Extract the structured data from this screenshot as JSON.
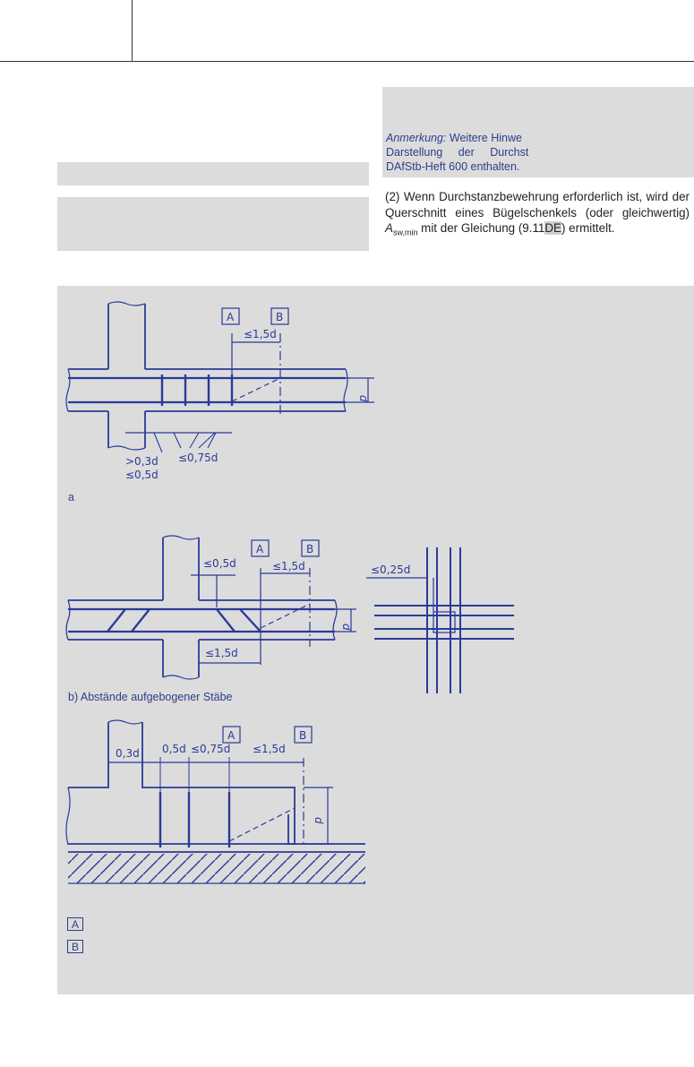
{
  "note": {
    "label": "Anmerkung:",
    "line1": "Weitere Hinwe",
    "line2": "Darstellung der Durchst",
    "line3": "DAfStb-Heft 600 enthalten."
  },
  "paragraph": {
    "text_a": "(2) Wenn Durchstanzbewehrung erforderlich ist, wird der Querschnitt eines Bügelschenkels (oder gleichwertig) ",
    "symbol": "A",
    "subscript": "sw,min",
    "text_b": " mit der Gleichung (9.11",
    "highlight": "DE",
    "text_c": ") ermittelt."
  },
  "figure": {
    "caption_a": "a",
    "caption_b": "b) Abstände aufgebogener Stäbe",
    "key_a": "A",
    "key_b": "B",
    "labels": {
      "a1": "A",
      "b1": "B",
      "d": "d",
      "le15": "≤1,5d",
      "gt03": ">0,3d",
      "le05": "≤0,5d",
      "le075": "≤0,75d",
      "le025": "≤0,25d",
      "d03": "0,3d",
      "d05": "0,5d"
    }
  },
  "colors": {
    "panel": "#dcdcdc",
    "ink": "#2a3a9a",
    "note": "#2c3e8a"
  }
}
